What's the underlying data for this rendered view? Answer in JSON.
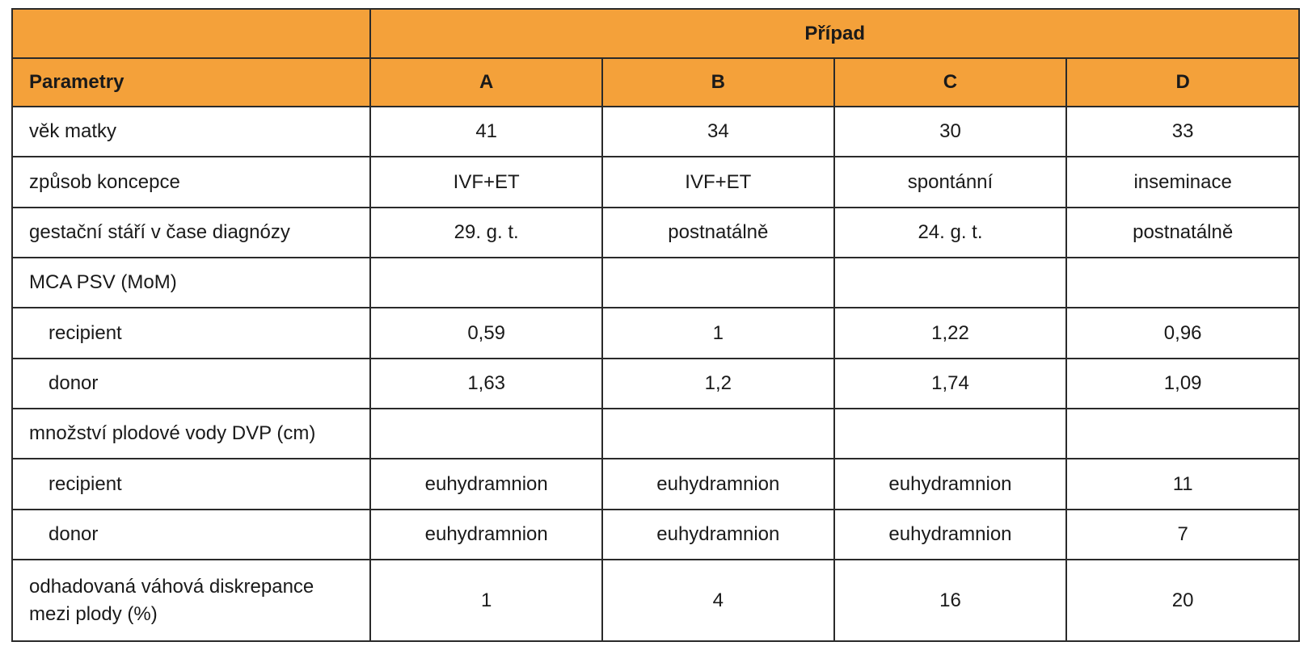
{
  "header": {
    "group_label": "Případ",
    "param_label": "Parametry",
    "cases": [
      "A",
      "B",
      "C",
      "D"
    ]
  },
  "rows": [
    {
      "label": "věk matky",
      "values": [
        "41",
        "34",
        "30",
        "33"
      ]
    },
    {
      "label": "způsob koncepce",
      "values": [
        "IVF+ET",
        "IVF+ET",
        "spontánní",
        "inseminace"
      ]
    },
    {
      "label": "gestační stáří v čase diagnózy",
      "values": [
        "29. g. t.",
        "postnatálně",
        "24. g. t.",
        "postnatálně"
      ]
    },
    {
      "label": "MCA PSV (MoM)",
      "values": [
        "",
        "",
        "",
        ""
      ]
    },
    {
      "label": "recipient",
      "values": [
        "0,59",
        "1",
        "1,22",
        "0,96"
      ]
    },
    {
      "label": "donor",
      "values": [
        "1,63",
        "1,2",
        "1,74",
        "1,09"
      ]
    },
    {
      "label": "množství plodové vody DVP (cm)",
      "values": [
        "",
        "",
        "",
        ""
      ]
    },
    {
      "label": "recipient",
      "values": [
        "euhydramnion",
        "euhydramnion",
        "euhydramnion",
        "11"
      ]
    },
    {
      "label": "donor",
      "values": [
        "euhydramnion",
        "euhydramnion",
        "euhydramnion",
        "7"
      ]
    },
    {
      "label_line1": "odhadovaná váhová diskrepance",
      "label_line2": "mezi plody (%)",
      "values": [
        "1",
        "4",
        "16",
        "20"
      ]
    }
  ]
}
